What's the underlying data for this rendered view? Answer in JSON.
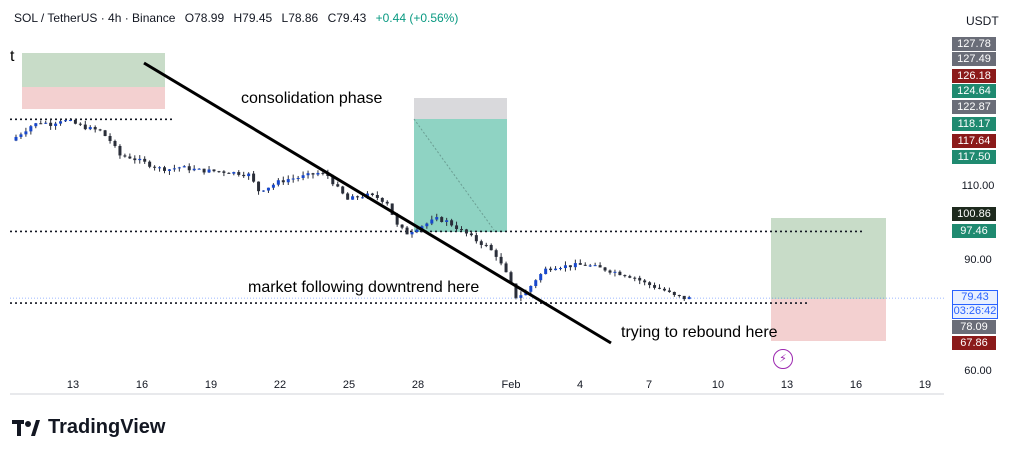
{
  "header": {
    "symbol": "SOL / TetherUS · 4h · Binance",
    "open": "O78.99",
    "high": "H79.45",
    "low": "L78.86",
    "close": "C79.43",
    "change": "+0.44 (+0.56%)"
  },
  "currency": "USDT",
  "brand": "TradingView",
  "left_edge_text": "t",
  "annotations": {
    "consolidation": "consolidation phase",
    "downtrend": "market following downtrend here",
    "rebound": "trying to rebound here"
  },
  "colors": {
    "up": "#089981",
    "down": "#2a2e39",
    "up_body": "#1848cc",
    "gray_badge": "#6a6d78",
    "red_badge": "#8b1a1a",
    "green_badge": "#1f8a70",
    "target_zone": "#c8dcc8",
    "stop_zone": "#f3d0d0",
    "accent_purple": "#9c27b0"
  },
  "chart_data": {
    "type": "candlestick",
    "title": "SOL / TetherUS · 4h · Binance",
    "x_ticks": [
      "13",
      "16",
      "19",
      "22",
      "25",
      "28",
      "Feb",
      "4",
      "7",
      "10",
      "13",
      "16",
      "19"
    ],
    "y_ticks": [
      60,
      90,
      110
    ],
    "ylim": [
      60,
      130
    ],
    "price_axis_labels": [
      {
        "value": "127.78",
        "kind": "gray"
      },
      {
        "value": "127.49",
        "kind": "gray"
      },
      {
        "value": "126.18",
        "kind": "red"
      },
      {
        "value": "124.64",
        "kind": "green"
      },
      {
        "value": "122.87",
        "kind": "gray"
      },
      {
        "value": "118.17",
        "kind": "green"
      },
      {
        "value": "117.64",
        "kind": "red"
      },
      {
        "value": "117.50",
        "kind": "green"
      },
      {
        "value": "100.86",
        "kind": "dark"
      },
      {
        "value": "97.46",
        "kind": "green"
      },
      {
        "value": "79.43",
        "kind": "blue"
      },
      {
        "value": "03:26:42",
        "kind": "blue"
      },
      {
        "value": "78.09",
        "kind": "gray"
      },
      {
        "value": "67.86",
        "kind": "red"
      }
    ],
    "price_path": [
      [
        0,
        122
      ],
      [
        2,
        124
      ],
      [
        4,
        126
      ],
      [
        6,
        127
      ],
      [
        8,
        126.5
      ],
      [
        10,
        127.6
      ],
      [
        12,
        127
      ],
      [
        14,
        126
      ],
      [
        16,
        125.2
      ],
      [
        18,
        124.6
      ],
      [
        20,
        122
      ],
      [
        22,
        118
      ],
      [
        24,
        117.5
      ],
      [
        26,
        116.5
      ],
      [
        28,
        115.5
      ],
      [
        30,
        114.5
      ],
      [
        32,
        114.3
      ],
      [
        34,
        114.8
      ],
      [
        36,
        114.4
      ],
      [
        38,
        114.0
      ],
      [
        40,
        113.8
      ],
      [
        42,
        113.7
      ],
      [
        44,
        113.5
      ],
      [
        46,
        113.2
      ],
      [
        48,
        112.8
      ],
      [
        50,
        108.5
      ],
      [
        52,
        109.5
      ],
      [
        54,
        110.8
      ],
      [
        56,
        111.6
      ],
      [
        58,
        112.0
      ],
      [
        60,
        112.6
      ],
      [
        62,
        113.2
      ],
      [
        64,
        112.5
      ],
      [
        66,
        109.0
      ],
      [
        68,
        106.0
      ],
      [
        70,
        106.8
      ],
      [
        72,
        107.2
      ],
      [
        74,
        106.6
      ],
      [
        76,
        105.3
      ],
      [
        78,
        99.0
      ],
      [
        80,
        97.0
      ],
      [
        82,
        98.5
      ],
      [
        84,
        99.6
      ],
      [
        86,
        100.8
      ],
      [
        88,
        100.2
      ],
      [
        90,
        98.5
      ],
      [
        92,
        96.8
      ],
      [
        94,
        95.0
      ],
      [
        96,
        93.5
      ],
      [
        98,
        91.0
      ],
      [
        100,
        86.0
      ],
      [
        102,
        79.8
      ],
      [
        104,
        81.0
      ],
      [
        106,
        84.5
      ],
      [
        108,
        87.2
      ],
      [
        110,
        88.0
      ],
      [
        112,
        88.1
      ],
      [
        114,
        88.3
      ],
      [
        116,
        88.4
      ],
      [
        118,
        87.8
      ],
      [
        120,
        87.2
      ],
      [
        122,
        86.5
      ],
      [
        124,
        85.8
      ],
      [
        126,
        85.0
      ],
      [
        128,
        83.5
      ],
      [
        130,
        82.5
      ],
      [
        132,
        81.5
      ],
      [
        134,
        80.0
      ],
      [
        136,
        79.43
      ]
    ],
    "levels": {
      "resistance": 127.49,
      "mid_level": 97.46,
      "current": 79.43,
      "support": 78.09
    },
    "trendline": {
      "from": [
        16.5,
        125.5
      ],
      "to": [
        102,
        67.5
      ]
    }
  }
}
